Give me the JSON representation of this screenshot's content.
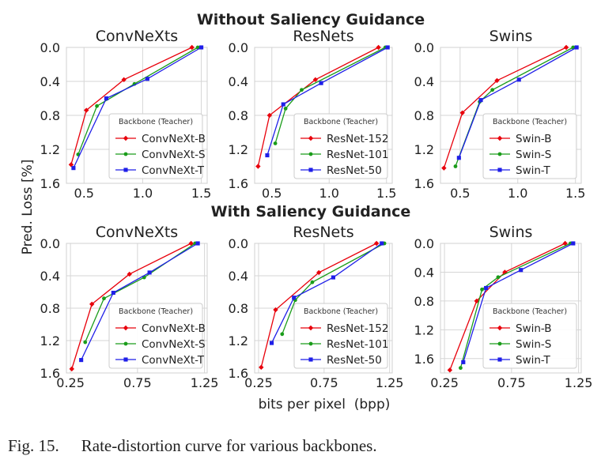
{
  "figure": {
    "section_titles": [
      "Without Saliency Guidance",
      "With Saliency Guidance"
    ],
    "shared_ylabel": "Pred. Loss [%]",
    "shared_xlabel": "bits per pixel  (bpp)",
    "legend_title": "Backbone (Teacher)",
    "colors": {
      "red": "#e8000b",
      "green": "#1a9c1a",
      "blue": "#1f1fe8"
    }
  },
  "caption": {
    "number": "Fig. 15.",
    "text": "Rate-distortion curve for various backbones."
  },
  "chart_data": [
    {
      "type": "line",
      "group": "Without Saliency Guidance",
      "title": "ConvNeXts",
      "xlabel": "",
      "ylabel": "Pred. Loss [%]",
      "xlim": [
        0.35,
        1.55
      ],
      "ylim": [
        0.0,
        1.6
      ],
      "y_inverted": true,
      "xticks": [
        "0.5",
        "1.0",
        "1.5"
      ],
      "xtick_values": [
        0.5,
        1.0,
        1.5
      ],
      "yticks": [
        "0.0",
        "0.4",
        "0.8",
        "1.2",
        "1.6"
      ],
      "ytick_values": [
        0.0,
        0.4,
        0.8,
        1.2,
        1.6
      ],
      "legend": "bottom-right",
      "grid": true,
      "series": [
        {
          "name": "ConvNeXt-B",
          "color": "#e8000b",
          "marker": "diamond",
          "x": [
            0.39,
            0.52,
            0.84,
            1.42
          ],
          "y": [
            1.38,
            0.74,
            0.38,
            0.0
          ]
        },
        {
          "name": "ConvNeXt-S",
          "color": "#1a9c1a",
          "marker": "circle",
          "x": [
            0.45,
            0.61,
            0.93,
            1.47
          ],
          "y": [
            1.26,
            0.69,
            0.43,
            0.0
          ]
        },
        {
          "name": "ConvNeXt-T",
          "color": "#1f1fe8",
          "marker": "square",
          "x": [
            0.41,
            0.69,
            1.04,
            1.5
          ],
          "y": [
            1.42,
            0.6,
            0.37,
            0.0
          ]
        }
      ]
    },
    {
      "type": "line",
      "group": "Without Saliency Guidance",
      "title": "ResNets",
      "xlabel": "",
      "ylabel": "",
      "xlim": [
        0.35,
        1.55
      ],
      "ylim": [
        0.0,
        1.6
      ],
      "y_inverted": true,
      "xticks": [
        "0.5",
        "1.0",
        "1.5"
      ],
      "xtick_values": [
        0.5,
        1.0,
        1.5
      ],
      "yticks": [
        "0.0",
        "0.4",
        "0.8",
        "1.2",
        "1.6"
      ],
      "ytick_values": [
        0.0,
        0.4,
        0.8,
        1.2,
        1.6
      ],
      "legend": "bottom-right",
      "grid": true,
      "series": [
        {
          "name": "ResNet-152",
          "color": "#e8000b",
          "marker": "diamond",
          "x": [
            0.38,
            0.48,
            0.88,
            1.43
          ],
          "y": [
            1.4,
            0.8,
            0.38,
            0.0
          ]
        },
        {
          "name": "ResNet-101",
          "color": "#1a9c1a",
          "marker": "circle",
          "x": [
            0.53,
            0.62,
            0.76,
            1.49
          ],
          "y": [
            1.13,
            0.72,
            0.5,
            0.0
          ]
        },
        {
          "name": "ResNet-50",
          "color": "#1f1fe8",
          "marker": "square",
          "x": [
            0.46,
            0.6,
            0.93,
            1.51
          ],
          "y": [
            1.27,
            0.67,
            0.42,
            0.0
          ]
        }
      ]
    },
    {
      "type": "line",
      "group": "Without Saliency Guidance",
      "title": "Swins",
      "xlabel": "",
      "ylabel": "",
      "xlim": [
        0.33,
        1.55
      ],
      "ylim": [
        0.0,
        1.6
      ],
      "y_inverted": true,
      "xticks": [
        "0.5",
        "1.0",
        "1.5"
      ],
      "xtick_values": [
        0.5,
        1.0,
        1.5
      ],
      "yticks": [
        "0.0",
        "0.4",
        "0.8",
        "1.2",
        "1.6"
      ],
      "ytick_values": [
        0.0,
        0.4,
        0.8,
        1.2,
        1.6
      ],
      "legend": "bottom-right",
      "grid": true,
      "series": [
        {
          "name": "Swin-B",
          "color": "#e8000b",
          "marker": "diamond",
          "x": [
            0.36,
            0.52,
            0.82,
            1.42
          ],
          "y": [
            1.42,
            0.77,
            0.39,
            0.0
          ]
        },
        {
          "name": "Swin-S",
          "color": "#1a9c1a",
          "marker": "circle",
          "x": [
            0.46,
            0.67,
            0.78,
            1.48
          ],
          "y": [
            1.4,
            0.64,
            0.5,
            0.0
          ]
        },
        {
          "name": "Swin-T",
          "color": "#1f1fe8",
          "marker": "square",
          "x": [
            0.49,
            0.68,
            1.01,
            1.51
          ],
          "y": [
            1.3,
            0.62,
            0.38,
            0.0
          ]
        }
      ]
    },
    {
      "type": "line",
      "group": "With Saliency Guidance",
      "title": "ConvNeXts",
      "xlabel": "bits per pixel  (bpp)",
      "ylabel": "Pred. Loss [%]",
      "xlim": [
        0.22,
        1.27
      ],
      "ylim": [
        0.0,
        1.6
      ],
      "y_inverted": true,
      "xticks": [
        "0.25",
        "0.75",
        "1.25"
      ],
      "xtick_values": [
        0.25,
        0.75,
        1.25
      ],
      "yticks": [
        "0.0",
        "0.4",
        "0.8",
        "1.2",
        "1.6"
      ],
      "ytick_values": [
        0.0,
        0.4,
        0.8,
        1.2,
        1.6
      ],
      "legend": "bottom-right",
      "grid": true,
      "series": [
        {
          "name": "ConvNeXt-B",
          "color": "#e8000b",
          "marker": "diamond",
          "x": [
            0.26,
            0.41,
            0.69,
            1.15
          ],
          "y": [
            1.55,
            0.75,
            0.38,
            0.0
          ]
        },
        {
          "name": "ConvNeXt-S",
          "color": "#1a9c1a",
          "marker": "circle",
          "x": [
            0.36,
            0.5,
            0.8,
            1.18
          ],
          "y": [
            1.22,
            0.68,
            0.42,
            0.0
          ]
        },
        {
          "name": "ConvNeXt-T",
          "color": "#1f1fe8",
          "marker": "square",
          "x": [
            0.33,
            0.57,
            0.84,
            1.2
          ],
          "y": [
            1.44,
            0.61,
            0.36,
            0.0
          ]
        }
      ]
    },
    {
      "type": "line",
      "group": "With Saliency Guidance",
      "title": "ResNets",
      "xlabel": "bits per pixel  (bpp)",
      "ylabel": "",
      "xlim": [
        0.22,
        1.27
      ],
      "ylim": [
        0.0,
        1.6
      ],
      "y_inverted": true,
      "xticks": [
        "0.25",
        "0.75",
        "1.25"
      ],
      "xtick_values": [
        0.25,
        0.75,
        1.25
      ],
      "yticks": [
        "0.0",
        "0.4",
        "0.8",
        "1.2",
        "1.6"
      ],
      "ytick_values": [
        0.0,
        0.4,
        0.8,
        1.2,
        1.6
      ],
      "legend": "bottom-right",
      "grid": true,
      "series": [
        {
          "name": "ResNet-152",
          "color": "#e8000b",
          "marker": "diamond",
          "x": [
            0.27,
            0.38,
            0.71,
            1.15
          ],
          "y": [
            1.53,
            0.82,
            0.36,
            0.0
          ]
        },
        {
          "name": "ResNet-101",
          "color": "#1a9c1a",
          "marker": "circle",
          "x": [
            0.43,
            0.53,
            0.66,
            1.21
          ],
          "y": [
            1.12,
            0.7,
            0.48,
            0.0
          ]
        },
        {
          "name": "ResNet-50",
          "color": "#1f1fe8",
          "marker": "square",
          "x": [
            0.35,
            0.52,
            0.82,
            1.19
          ],
          "y": [
            1.23,
            0.67,
            0.42,
            0.0
          ]
        }
      ]
    },
    {
      "type": "line",
      "group": "With Saliency Guidance",
      "title": "Swins",
      "xlabel": "bits per pixel  (bpp)",
      "ylabel": "",
      "xlim": [
        0.22,
        1.27
      ],
      "ylim": [
        0.0,
        1.8
      ],
      "y_inverted": true,
      "xticks": [
        "0.25",
        "0.75",
        "1.25"
      ],
      "xtick_values": [
        0.25,
        0.75,
        1.25
      ],
      "yticks": [
        "0.0",
        "0.4",
        "0.8",
        "1.2",
        "1.6"
      ],
      "ytick_values": [
        0.0,
        0.4,
        0.8,
        1.2,
        1.6
      ],
      "legend": "bottom-right",
      "grid": true,
      "series": [
        {
          "name": "Swin-B",
          "color": "#e8000b",
          "marker": "diamond",
          "x": [
            0.29,
            0.49,
            0.7,
            1.15
          ],
          "y": [
            1.76,
            0.8,
            0.4,
            0.0
          ]
        },
        {
          "name": "Swin-S",
          "color": "#1a9c1a",
          "marker": "circle",
          "x": [
            0.37,
            0.53,
            0.65,
            1.19
          ],
          "y": [
            1.73,
            0.64,
            0.47,
            0.0
          ]
        },
        {
          "name": "Swin-T",
          "color": "#1f1fe8",
          "marker": "square",
          "x": [
            0.39,
            0.56,
            0.82,
            1.21
          ],
          "y": [
            1.65,
            0.62,
            0.37,
            0.0
          ]
        }
      ]
    }
  ]
}
